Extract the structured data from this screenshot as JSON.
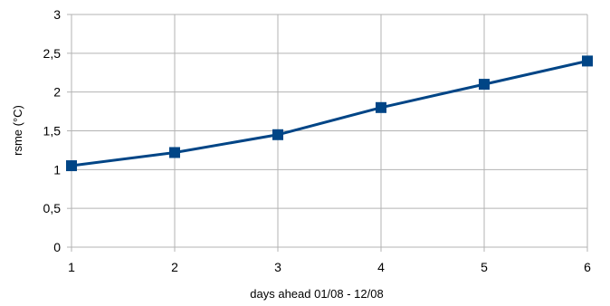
{
  "chart_data": {
    "type": "line",
    "title": "",
    "xlabel": "days ahead 01/08 - 12/08",
    "ylabel": "rsme (°C)",
    "x": [
      1,
      2,
      3,
      4,
      5,
      6
    ],
    "xlim": [
      1,
      6
    ],
    "ylim": [
      0,
      3
    ],
    "x_ticks": [
      "1",
      "2",
      "3",
      "4",
      "5",
      "6"
    ],
    "y_ticks": [
      "0",
      "0,5",
      "1",
      "1,5",
      "2",
      "2,5",
      "3"
    ],
    "series": [
      {
        "values": [
          1.05,
          1.22,
          1.45,
          1.8,
          2.1,
          2.4
        ],
        "color": "#004586",
        "marker": "square"
      }
    ],
    "grid": true,
    "legend": "none"
  }
}
